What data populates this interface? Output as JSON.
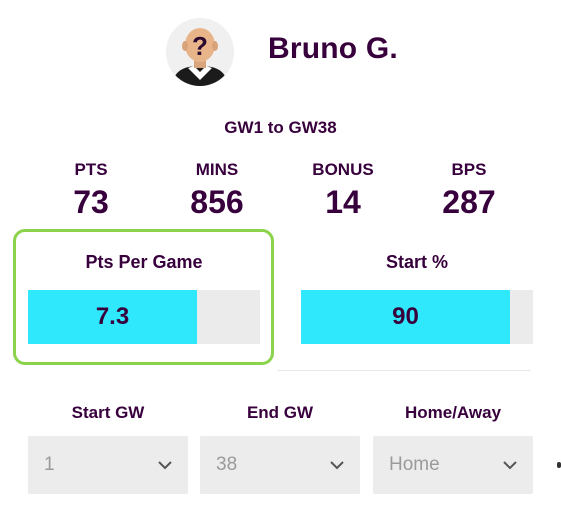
{
  "player": {
    "name": "Bruno G.",
    "avatar_icon": "unknown-player-silhouette-icon"
  },
  "range_label": "GW1 to GW38",
  "stats": [
    {
      "label": "PTS",
      "value": "73"
    },
    {
      "label": "MINS",
      "value": "856"
    },
    {
      "label": "BONUS",
      "value": "14"
    },
    {
      "label": "BPS",
      "value": "287"
    }
  ],
  "metrics": {
    "pts_per_game": {
      "label": "Pts Per Game",
      "value": "7.3",
      "fill_fraction": 0.73
    },
    "start_pct": {
      "label": "Start %",
      "value": "90",
      "fill_fraction": 0.9
    }
  },
  "filters": {
    "start_gw": {
      "label": "Start GW",
      "value": "1"
    },
    "end_gw": {
      "label": "End GW",
      "value": "38"
    },
    "home_away": {
      "label": "Home/Away",
      "value": "Home"
    }
  },
  "colors": {
    "brand_purple": "#37003c",
    "bar_cyan": "#2fe8fb",
    "highlight_green": "#8bd34a",
    "track_grey": "#ebebeb"
  }
}
